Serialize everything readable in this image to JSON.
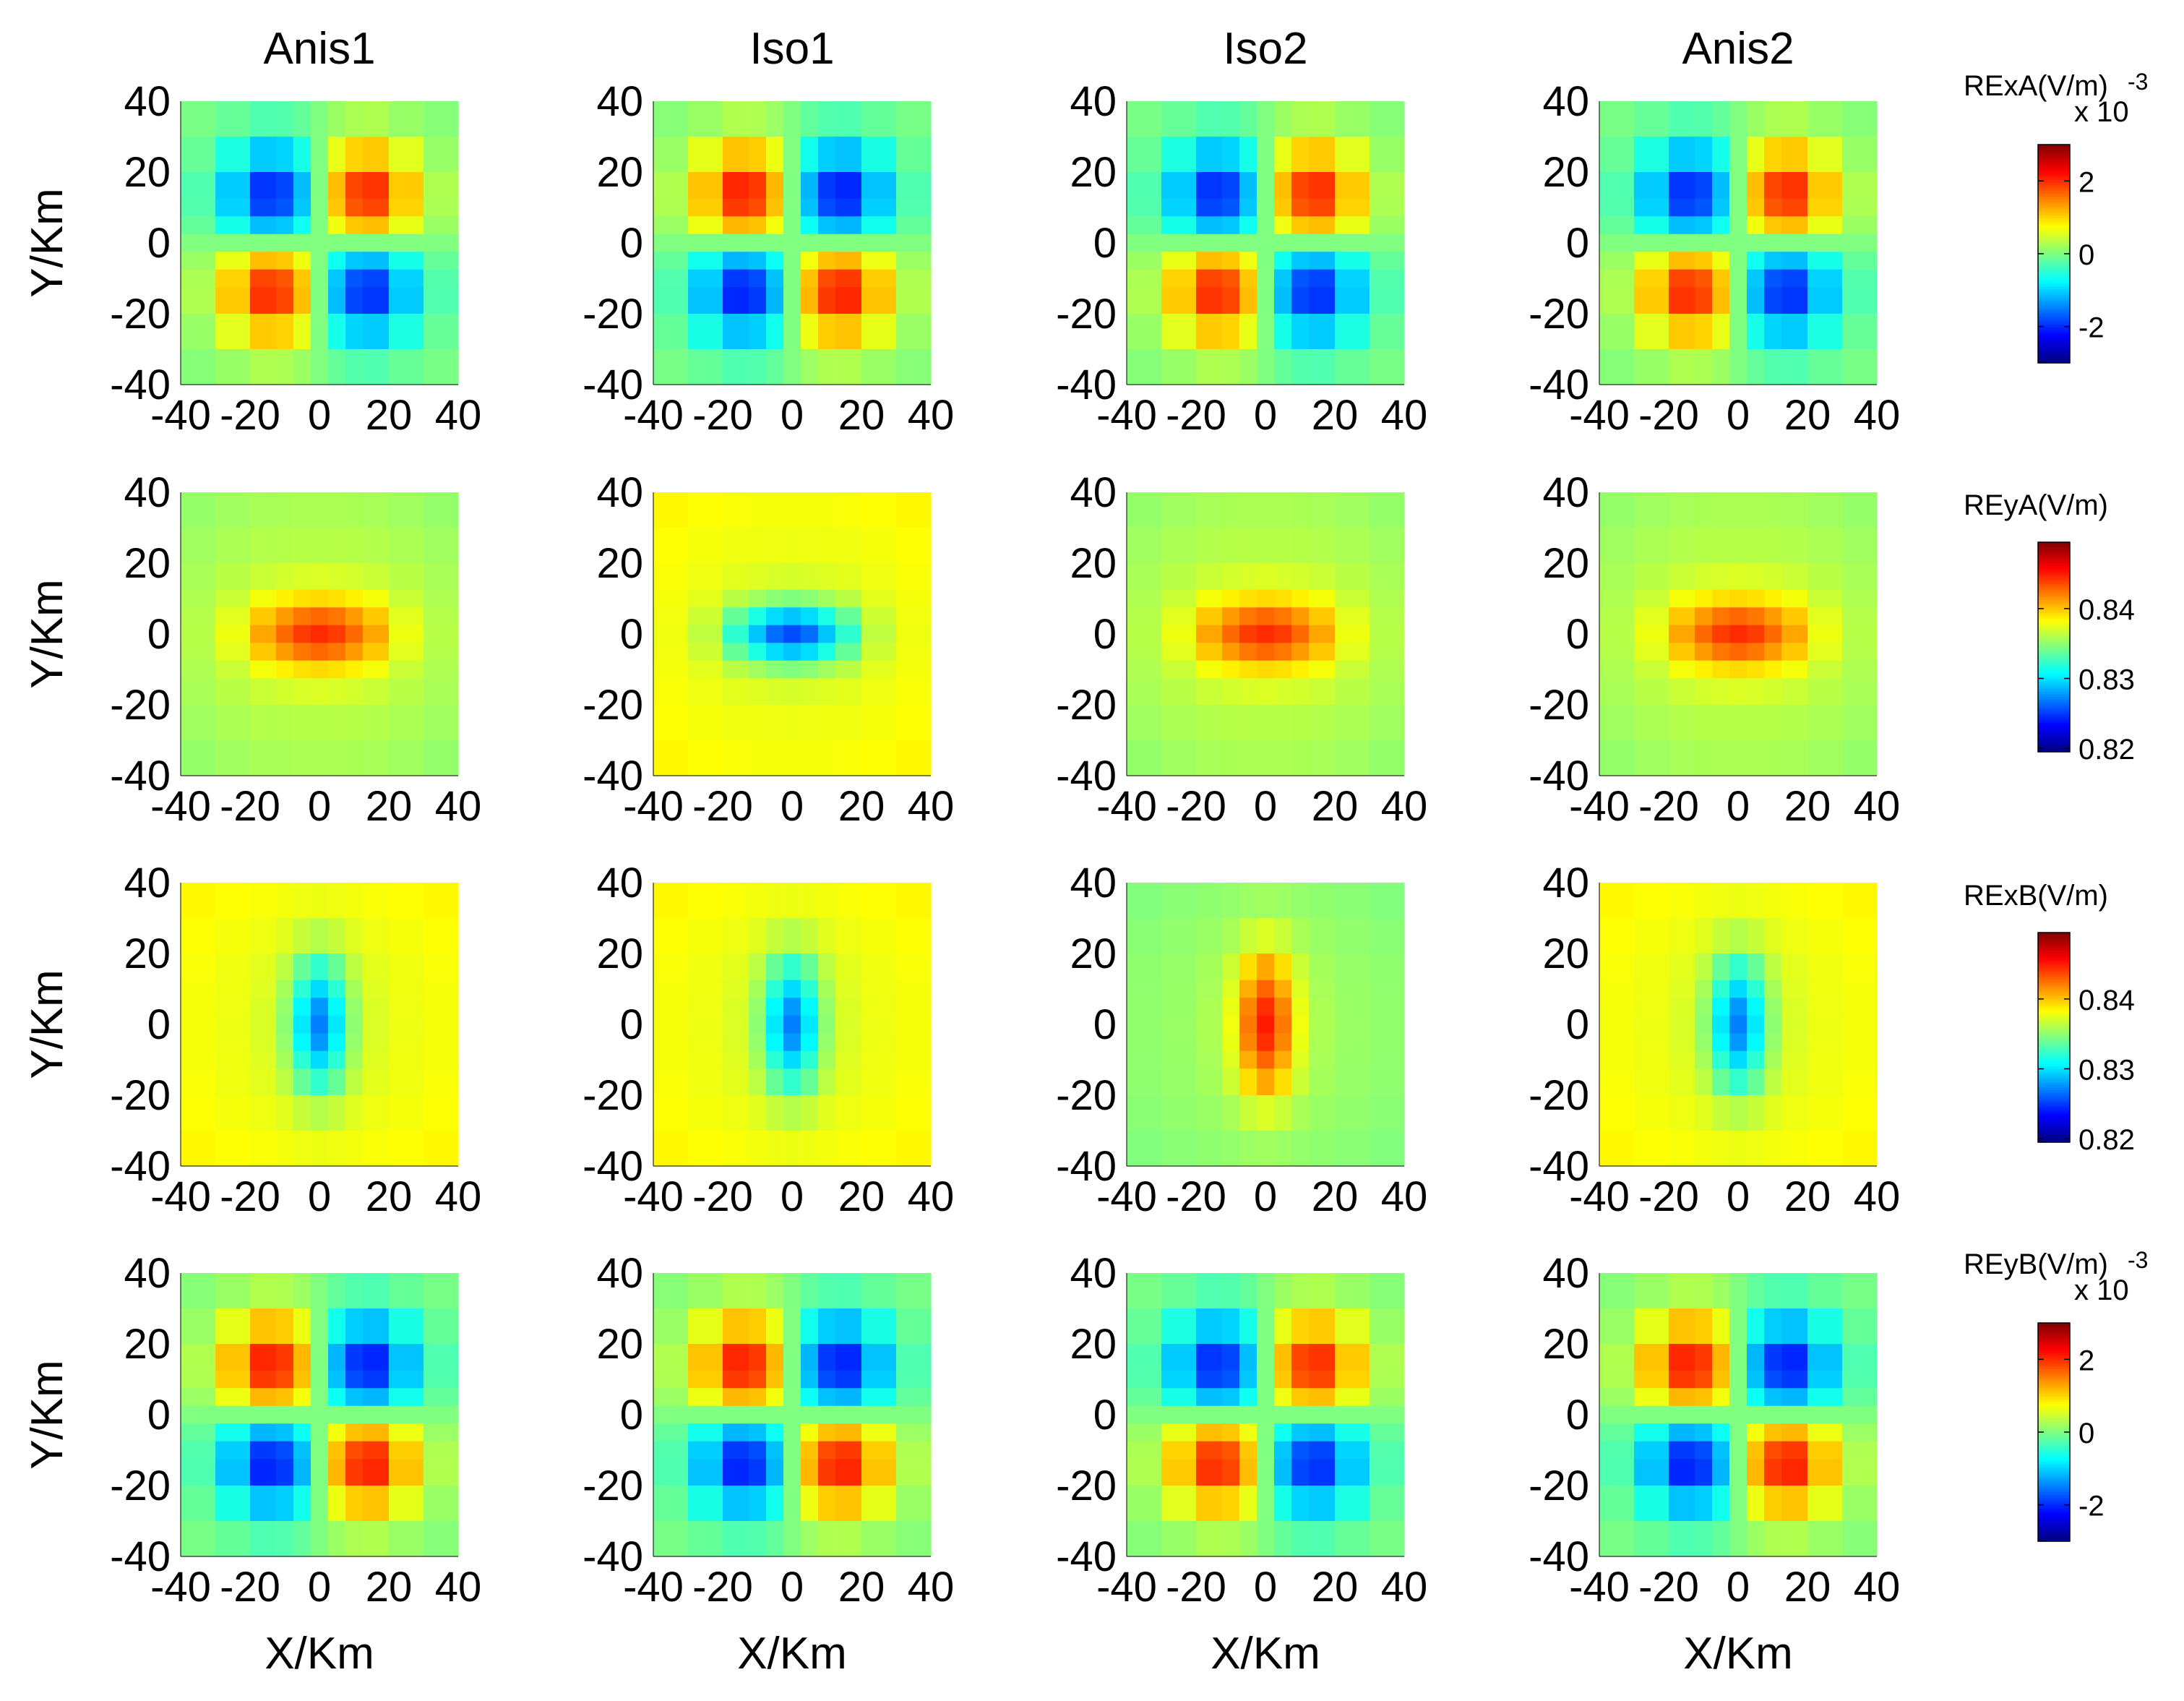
{
  "figure": {
    "column_titles": [
      "Anis1",
      "Iso1",
      "Iso2",
      "Anis2"
    ],
    "xlabel": "X/Km",
    "ylabel": "Y/Km",
    "colormap": "jet",
    "grid": false
  },
  "colorbars": [
    {
      "label": "RExA(V/m)",
      "exponent_text": "-3",
      "multiplier_text": "x 10",
      "clim": [
        -3,
        3
      ],
      "ticks": [
        2,
        0,
        -2
      ],
      "tick_labels": [
        "2",
        "0",
        "-2"
      ]
    },
    {
      "label": "REyA(V/m)",
      "clim": [
        0.8195,
        0.8495
      ],
      "ticks": [
        0.84,
        0.83,
        0.82
      ],
      "tick_labels": [
        "0.84",
        "0.83",
        "0.82"
      ]
    },
    {
      "label": "RExB(V/m)",
      "clim": [
        0.8195,
        0.8495
      ],
      "ticks": [
        0.84,
        0.83,
        0.82
      ],
      "tick_labels": [
        "0.84",
        "0.83",
        "0.82"
      ]
    },
    {
      "label": "REyB(V/m)",
      "exponent_text": "-3",
      "multiplier_text": "x 10",
      "clim": [
        -3,
        3
      ],
      "ticks": [
        2,
        0,
        -2
      ],
      "tick_labels": [
        "2",
        "0",
        "-2"
      ]
    }
  ],
  "chart_data": {
    "type": "heatmap",
    "rows": [
      "RExA",
      "REyA",
      "RExB",
      "REyB"
    ],
    "columns": [
      "Anis1",
      "Iso1",
      "Iso2",
      "Anis2"
    ],
    "x": [
      -35,
      -25,
      -15,
      -10,
      -5,
      0,
      5,
      10,
      15,
      25,
      35
    ],
    "y": [
      35,
      25,
      15,
      10,
      5,
      0,
      -5,
      -10,
      -15,
      -25,
      -35
    ],
    "xlim": [
      -40,
      40
    ],
    "ylim": [
      -40,
      40
    ],
    "xticks": [
      -40,
      -20,
      0,
      20,
      40
    ],
    "yticks": [
      40,
      20,
      0,
      -20,
      -40
    ],
    "xtick_labels": [
      "-40",
      "-20",
      "0",
      "20",
      "40"
    ],
    "ytick_labels": [
      "40",
      "20",
      "0",
      "-20",
      "-40"
    ],
    "panels": [
      [
        {
          "column": "Anis1",
          "pattern": "quadrupole",
          "sign": -1,
          "amplitude": 2.7,
          "clim": [
            -3,
            3
          ]
        },
        {
          "column": "Iso1",
          "pattern": "quadrupole",
          "sign": 1,
          "amplitude": 2.8,
          "clim": [
            -3,
            3
          ]
        },
        {
          "column": "Iso2",
          "pattern": "quadrupole",
          "sign": -1,
          "amplitude": 2.7,
          "clim": [
            -3,
            3
          ]
        },
        {
          "column": "Anis2",
          "pattern": "quadrupole",
          "sign": -1,
          "amplitude": 2.7,
          "clim": [
            -3,
            3
          ]
        }
      ],
      [
        {
          "column": "Anis1",
          "pattern": "blob",
          "base": 0.8365,
          "peak": 0.8445,
          "outer": 0.835,
          "lx": 14,
          "ly": 7,
          "clim": [
            0.8195,
            0.8495
          ]
        },
        {
          "column": "Iso1",
          "pattern": "blob",
          "base": 0.8375,
          "peak": 0.8255,
          "outer": 0.8385,
          "lx": 12,
          "ly": 6,
          "clim": [
            0.8195,
            0.8495
          ]
        },
        {
          "column": "Iso2",
          "pattern": "blob",
          "base": 0.8365,
          "peak": 0.8445,
          "outer": 0.835,
          "lx": 14,
          "ly": 7,
          "clim": [
            0.8195,
            0.8495
          ]
        },
        {
          "column": "Anis2",
          "pattern": "blob",
          "base": 0.8365,
          "peak": 0.8445,
          "outer": 0.835,
          "lx": 14,
          "ly": 7,
          "clim": [
            0.8195,
            0.8495
          ]
        }
      ],
      [
        {
          "column": "Anis1",
          "pattern": "blob",
          "base": 0.8375,
          "peak": 0.827,
          "outer": 0.8385,
          "lx": 6,
          "ly": 13,
          "clim": [
            0.8195,
            0.8495
          ]
        },
        {
          "column": "Iso1",
          "pattern": "blob",
          "base": 0.8375,
          "peak": 0.827,
          "outer": 0.8385,
          "lx": 6,
          "ly": 13,
          "clim": [
            0.8195,
            0.8495
          ]
        },
        {
          "column": "Iso2",
          "pattern": "blob",
          "base": 0.8355,
          "peak": 0.845,
          "outer": 0.8345,
          "lx": 6,
          "ly": 14,
          "clim": [
            0.8195,
            0.8495
          ]
        },
        {
          "column": "Anis2",
          "pattern": "blob",
          "base": 0.8375,
          "peak": 0.827,
          "outer": 0.8385,
          "lx": 6,
          "ly": 13,
          "clim": [
            0.8195,
            0.8495
          ]
        }
      ],
      [
        {
          "column": "Anis1",
          "pattern": "quadrupole",
          "sign": 1,
          "amplitude": 2.8,
          "clim": [
            -3,
            3
          ]
        },
        {
          "column": "Iso1",
          "pattern": "quadrupole",
          "sign": 1,
          "amplitude": 2.8,
          "clim": [
            -3,
            3
          ]
        },
        {
          "column": "Iso2",
          "pattern": "quadrupole",
          "sign": -1,
          "amplitude": 2.7,
          "clim": [
            -3,
            3
          ]
        },
        {
          "column": "Anis2",
          "pattern": "quadrupole",
          "sign": 1,
          "amplitude": 2.8,
          "clim": [
            -3,
            3
          ]
        }
      ]
    ]
  }
}
